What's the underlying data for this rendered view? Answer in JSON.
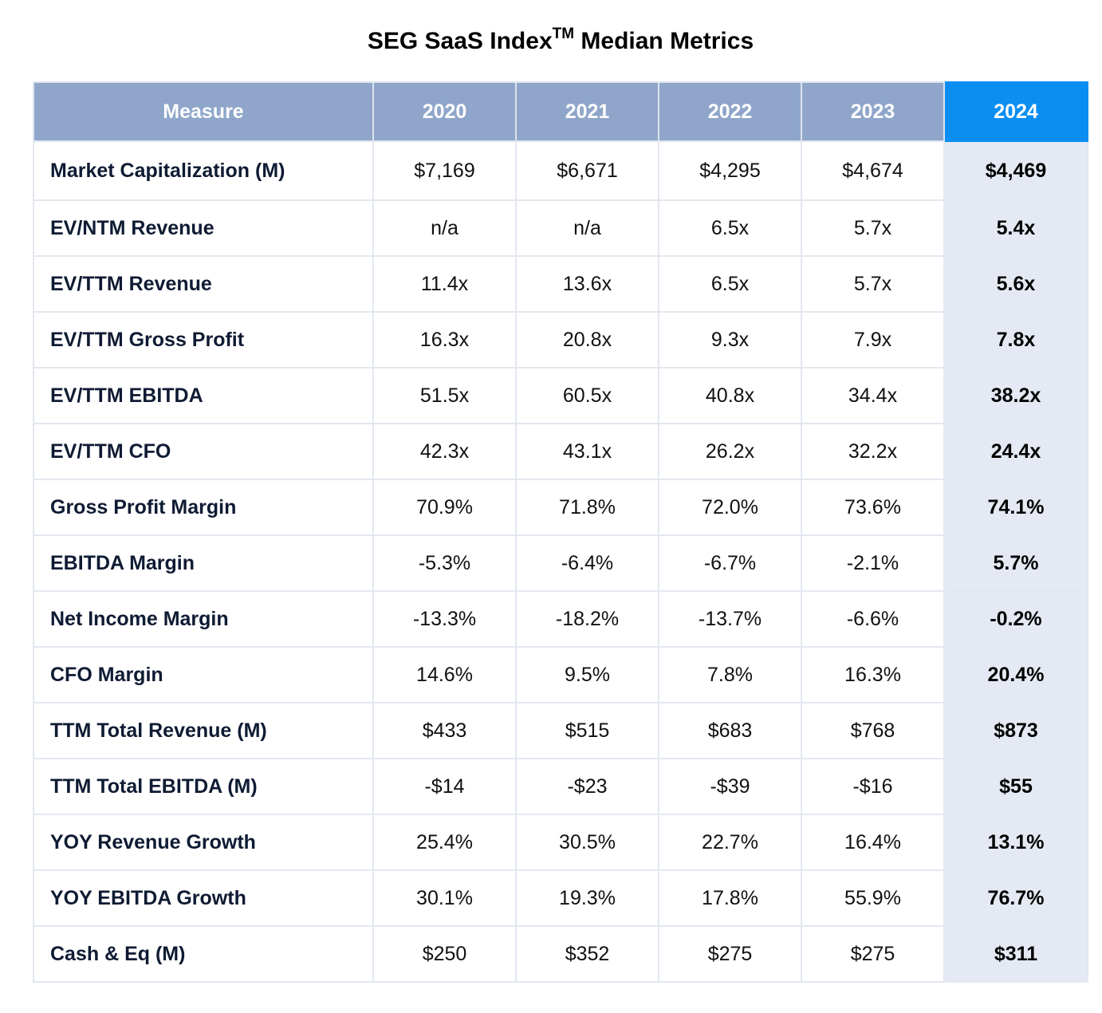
{
  "title": {
    "main": "SEG SaaS Index",
    "superscript": "TM",
    "rest": " Median Metrics"
  },
  "colors": {
    "header_bg": "#8fa6ca",
    "highlight_header_bg": "#0b8ef2",
    "highlight_column_bg": "#e5e9f3"
  },
  "table": {
    "headers": [
      "Measure",
      "2020",
      "2021",
      "2022",
      "2023",
      "2024"
    ],
    "rows": [
      {
        "measure": "Market Capitalization (M)",
        "values": [
          "$7,169",
          "$6,671",
          "$4,295",
          "$4,674",
          "$4,469"
        ]
      },
      {
        "measure": "EV/NTM Revenue",
        "values": [
          "n/a",
          "n/a",
          "6.5x",
          "5.7x",
          "5.4x"
        ]
      },
      {
        "measure": "EV/TTM Revenue",
        "values": [
          "11.4x",
          "13.6x",
          "6.5x",
          "5.7x",
          "5.6x"
        ]
      },
      {
        "measure": "EV/TTM Gross Profit",
        "values": [
          "16.3x",
          "20.8x",
          "9.3x",
          "7.9x",
          "7.8x"
        ]
      },
      {
        "measure": "EV/TTM EBITDA",
        "values": [
          "51.5x",
          "60.5x",
          "40.8x",
          "34.4x",
          "38.2x"
        ]
      },
      {
        "measure": "EV/TTM CFO",
        "values": [
          "42.3x",
          "43.1x",
          "26.2x",
          "32.2x",
          "24.4x"
        ]
      },
      {
        "measure": "Gross Profit Margin",
        "values": [
          "70.9%",
          "71.8%",
          "72.0%",
          "73.6%",
          "74.1%"
        ]
      },
      {
        "measure": "EBITDA Margin",
        "values": [
          "-5.3%",
          "-6.4%",
          "-6.7%",
          "-2.1%",
          "5.7%"
        ]
      },
      {
        "measure": "Net Income Margin",
        "values": [
          "-13.3%",
          "-18.2%",
          "-13.7%",
          "-6.6%",
          "-0.2%"
        ]
      },
      {
        "measure": "CFO Margin",
        "values": [
          "14.6%",
          "9.5%",
          "7.8%",
          "16.3%",
          "20.4%"
        ]
      },
      {
        "measure": "TTM Total Revenue (M)",
        "values": [
          "$433",
          "$515",
          "$683",
          "$768",
          "$873"
        ]
      },
      {
        "measure": "TTM Total EBITDA (M)",
        "values": [
          "-$14",
          "-$23",
          "-$39",
          "-$16",
          "$55"
        ]
      },
      {
        "measure": "YOY Revenue Growth",
        "values": [
          "25.4%",
          "30.5%",
          "22.7%",
          "16.4%",
          "13.1%"
        ]
      },
      {
        "measure": "YOY EBITDA Growth",
        "values": [
          "30.1%",
          "19.3%",
          "17.8%",
          "55.9%",
          "76.7%"
        ]
      },
      {
        "measure": "Cash & Eq (M)",
        "values": [
          "$250",
          "$352",
          "$275",
          "$275",
          "$311"
        ]
      }
    ]
  }
}
